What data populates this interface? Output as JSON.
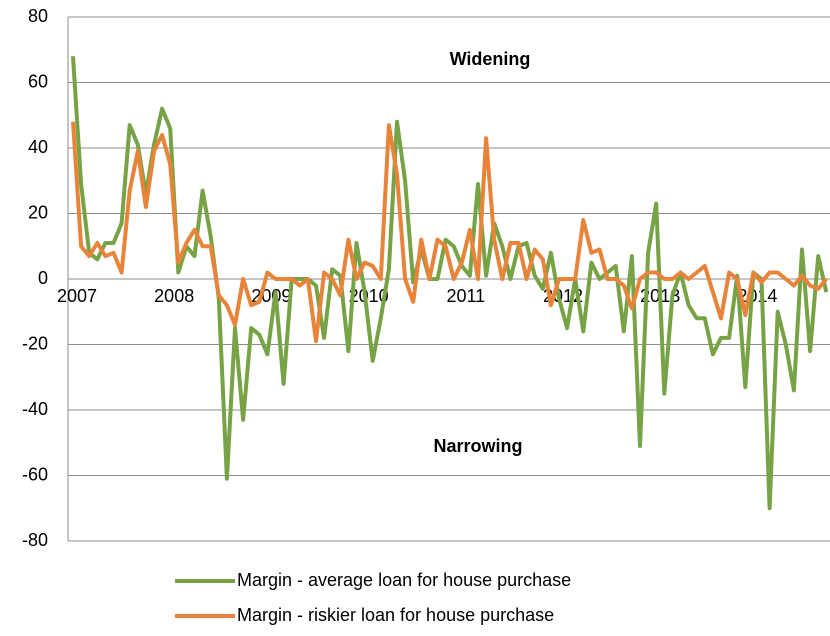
{
  "chart_data": {
    "type": "line",
    "annotations": [
      "Widening",
      "Narrowing"
    ],
    "categories": [
      "2007",
      null,
      null,
      null,
      null,
      null,
      null,
      null,
      null,
      null,
      null,
      null,
      "2008",
      null,
      null,
      null,
      null,
      null,
      null,
      null,
      null,
      null,
      null,
      null,
      "2009",
      null,
      null,
      null,
      null,
      null,
      null,
      null,
      null,
      null,
      null,
      null,
      "2010",
      null,
      null,
      null,
      null,
      null,
      null,
      null,
      null,
      null,
      null,
      null,
      "2011",
      null,
      null,
      null,
      null,
      null,
      null,
      null,
      null,
      null,
      null,
      null,
      "2012",
      null,
      null,
      null,
      null,
      null,
      null,
      null,
      null,
      null,
      null,
      null,
      "2013",
      null,
      null,
      null,
      null,
      null,
      null,
      null,
      null,
      null,
      null,
      null,
      "2014",
      null,
      null,
      null,
      null,
      null,
      null,
      null,
      null,
      null
    ],
    "series": [
      {
        "name": "Margin - average loan for house purchase",
        "color": "#77a346",
        "values": [
          68,
          29,
          8,
          6,
          11,
          11,
          17,
          47,
          41,
          26,
          41,
          52,
          46,
          2,
          10,
          7,
          27,
          13,
          -6,
          -61,
          -15,
          -43,
          -15,
          -17,
          -23,
          -4,
          -32,
          0,
          0,
          0,
          -2,
          -18,
          3,
          1,
          -22,
          11,
          -4,
          -25,
          -12,
          3,
          48,
          30,
          -1,
          9,
          0,
          0,
          12,
          10,
          4,
          1,
          29,
          1,
          17,
          10,
          0,
          10,
          11,
          1,
          -3,
          8,
          -6,
          -15,
          0,
          -16,
          5,
          0,
          2,
          4,
          -16,
          7,
          -51,
          8,
          23,
          -35,
          -5,
          2,
          -8,
          -12,
          -12,
          -23,
          -18,
          -18,
          1,
          -33,
          2,
          0,
          -70,
          -10,
          -20,
          -34,
          9,
          -22,
          7,
          -4
        ]
      },
      {
        "name": "Margin - riskier loan for house purchase",
        "color": "#e8843a",
        "values": [
          48,
          10,
          7,
          11,
          7,
          8,
          2,
          27,
          39,
          22,
          39,
          44,
          35,
          5,
          11,
          15,
          10,
          10,
          -5,
          -8,
          -14,
          0,
          -8,
          -7,
          2,
          0,
          0,
          0,
          -2,
          0,
          -19,
          2,
          0,
          -5,
          12,
          0,
          5,
          4,
          0,
          47,
          32,
          0,
          -7,
          12,
          0,
          12,
          10,
          0,
          5,
          15,
          0,
          43,
          12,
          0,
          11,
          11,
          0,
          9,
          6,
          -8,
          0,
          0,
          0,
          18,
          8,
          9,
          0,
          0,
          -2,
          -9,
          0,
          2,
          2,
          0,
          0,
          2,
          0,
          2,
          4,
          -4,
          -12,
          2,
          0,
          -11,
          2,
          -1,
          2,
          2,
          0,
          -2,
          1,
          -2,
          -3,
          0
        ]
      }
    ],
    "ylim": [
      -80,
      80
    ],
    "yticks": [
      -80,
      -60,
      -40,
      -20,
      0,
      20,
      40,
      60,
      80
    ],
    "grid": true
  }
}
